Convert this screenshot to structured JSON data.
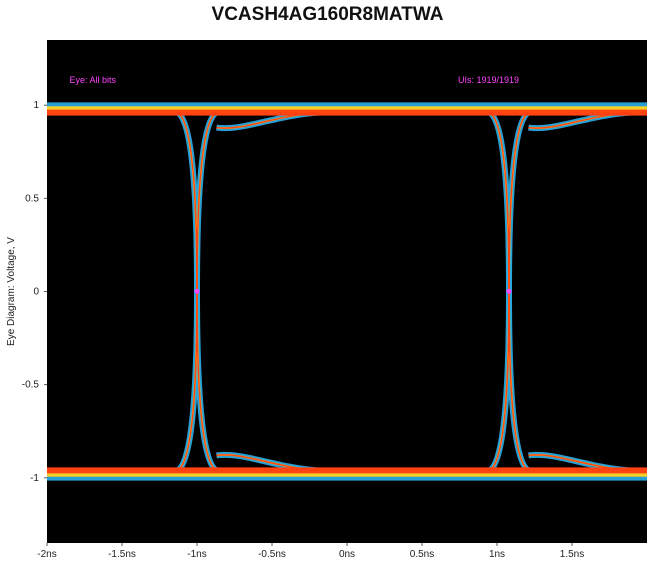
{
  "chart_data": {
    "type": "line",
    "title": "VCASH4AG160R8MATWA",
    "xlabel": "",
    "ylabel": "Eye Diagram: Voltage, V",
    "xlim": [
      -2.0,
      2.0
    ],
    "ylim": [
      -1.35,
      1.35
    ],
    "x_ticks": [
      -2,
      -1.5,
      -1,
      -0.5,
      0,
      0.5,
      1,
      1.5
    ],
    "x_tick_labels": [
      "-2ns",
      "-1.5ns",
      "-1ns",
      "-0.5ns",
      "0ns",
      "0.5ns",
      "1ns",
      "1.5ns"
    ],
    "y_ticks": [
      1,
      0.5,
      0,
      -0.5,
      -1
    ],
    "y_tick_labels": [
      "1",
      "0.5",
      "0",
      "-0.5",
      "-1"
    ],
    "grid": false,
    "annotations": [
      {
        "text": "Eye: All bits",
        "x": -1.85,
        "y": 1.12
      },
      {
        "text": "UIs: 1919/1919",
        "x": 0.74,
        "y": 1.12
      }
    ],
    "crossings": [
      {
        "x": -1.0,
        "y": 0
      },
      {
        "x": 1.08,
        "y": 0
      }
    ],
    "levels": {
      "high": 0.96,
      "low": -0.96
    },
    "colors": {
      "background": "#000000",
      "core": "#ff3b10",
      "mid": "#ffd21e",
      "outer": "#29a8e0",
      "annotation": "#ff44ff"
    }
  }
}
